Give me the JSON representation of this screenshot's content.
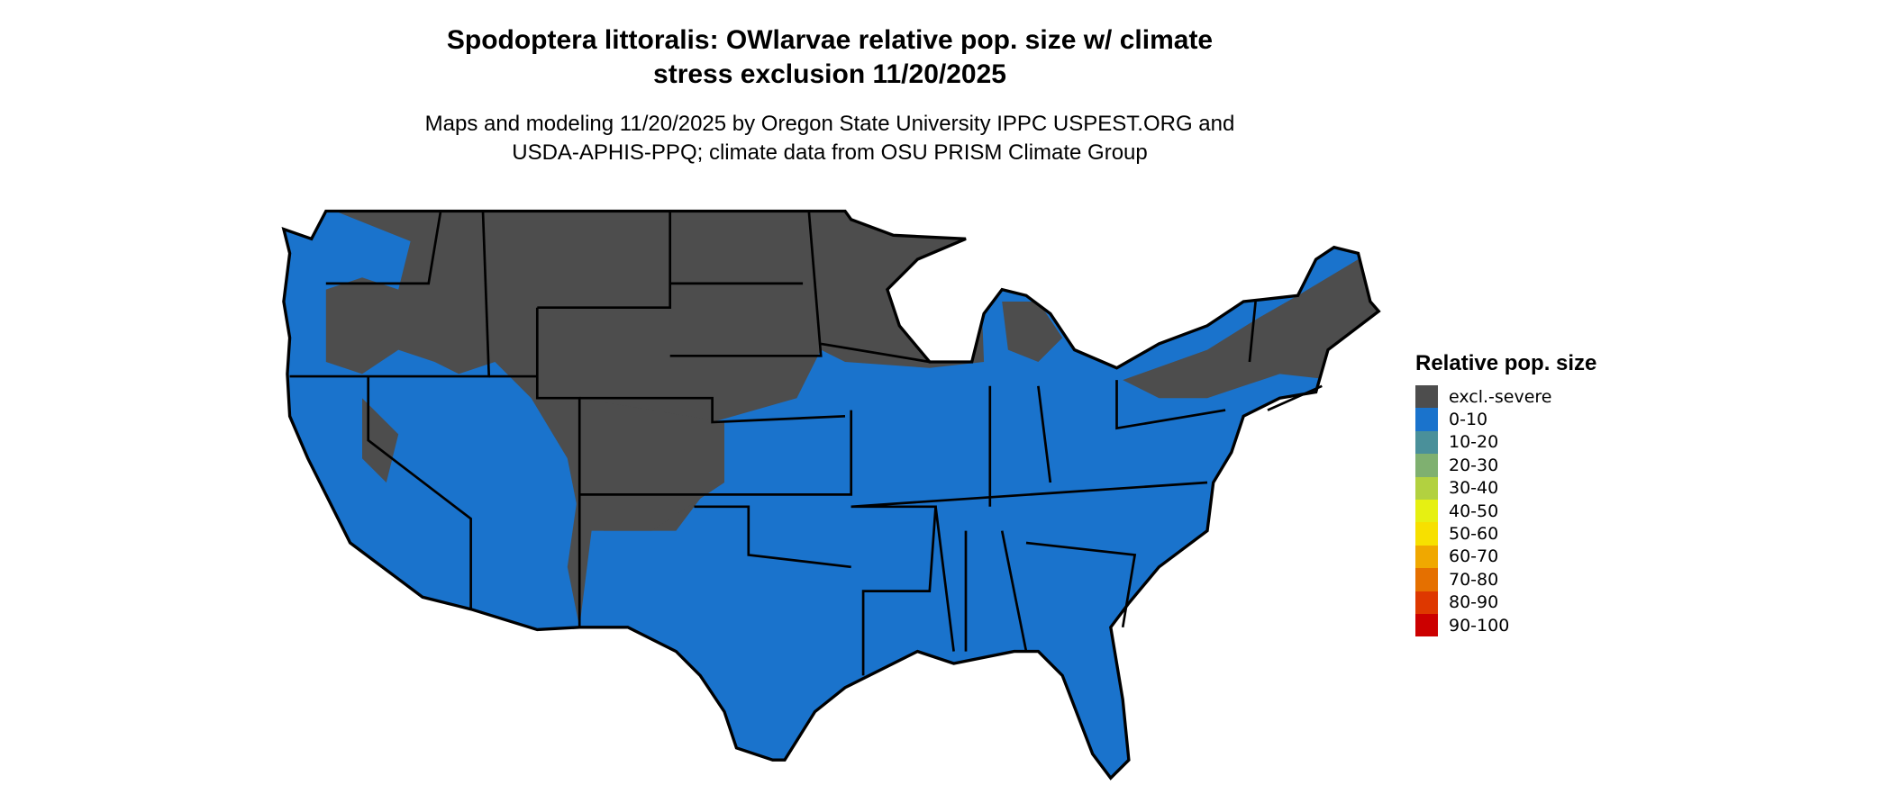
{
  "title": "Spodoptera littoralis: OWlarvae relative pop. size w/ climate stress exclusion 11/20/2025",
  "title_lines": [
    "Spodoptera littoralis: OWlarvae relative pop. size w/ climate",
    "stress exclusion 11/20/2025"
  ],
  "subtitle_lines": [
    "Maps and modeling 11/20/2025 by Oregon State University IPPC USPEST.ORG and",
    "USDA-APHIS-PPQ; climate data from OSU PRISM Climate Group"
  ],
  "map": {
    "region": "Contiguous United States",
    "dominant_class": "0-10",
    "excluded_regions": "northern states, Rockies, Northeast"
  },
  "legend": {
    "title": "Relative pop. size",
    "items": [
      {
        "label": "excl.-severe",
        "color": "#4d4d4d"
      },
      {
        "label": "0-10",
        "color": "#1a73cc"
      },
      {
        "label": "10-20",
        "color": "#4a909a"
      },
      {
        "label": "20-30",
        "color": "#7fb070"
      },
      {
        "label": "30-40",
        "color": "#b2d140"
      },
      {
        "label": "40-50",
        "color": "#e6f012"
      },
      {
        "label": "50-60",
        "color": "#f7e000"
      },
      {
        "label": "60-70",
        "color": "#f0a800"
      },
      {
        "label": "70-80",
        "color": "#e57000"
      },
      {
        "label": "80-90",
        "color": "#de3800"
      },
      {
        "label": "90-100",
        "color": "#cc0000"
      }
    ]
  }
}
